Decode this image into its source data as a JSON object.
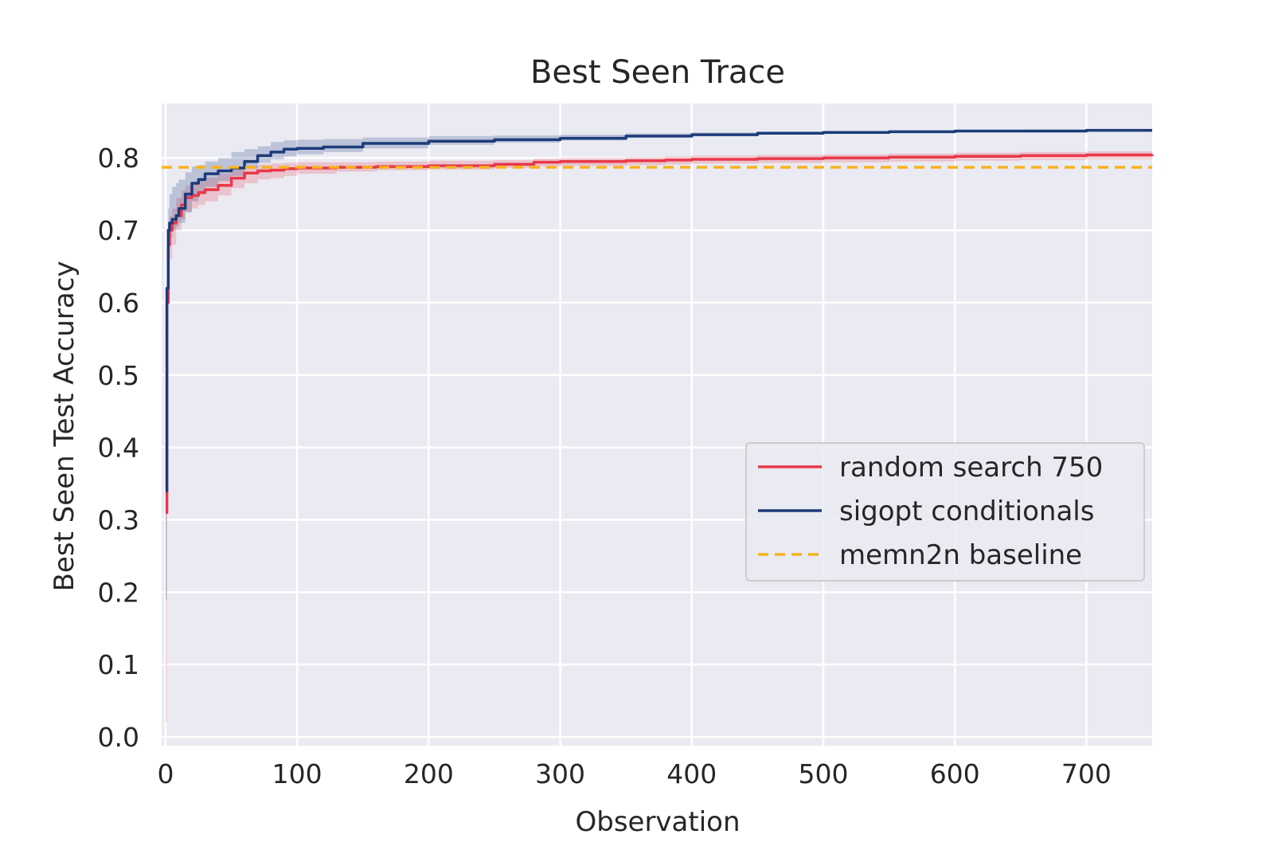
{
  "chart_data": {
    "type": "line",
    "title": "Best Seen Trace",
    "xlabel": "Observation",
    "ylabel": "Best Seen Test Accuracy",
    "xlim": [
      -3,
      750
    ],
    "ylim": [
      -0.012,
      0.875
    ],
    "x_ticks": [
      0,
      100,
      200,
      300,
      400,
      500,
      600,
      700
    ],
    "y_ticks": [
      0.0,
      0.1,
      0.2,
      0.3,
      0.4,
      0.5,
      0.6,
      0.7,
      0.8
    ],
    "grid": true,
    "legend_position": "center-right",
    "series": [
      {
        "name": "random search 750",
        "color": "#e8394a",
        "style": "solid",
        "x": [
          0,
          1,
          2,
          3,
          5,
          8,
          12,
          15,
          20,
          25,
          30,
          40,
          50,
          60,
          70,
          80,
          90,
          100,
          130,
          160,
          200,
          250,
          280,
          300,
          350,
          380,
          400,
          450,
          500,
          550,
          600,
          650,
          700,
          750
        ],
        "y": [
          0.31,
          0.6,
          0.68,
          0.7,
          0.71,
          0.72,
          0.735,
          0.745,
          0.748,
          0.752,
          0.756,
          0.762,
          0.772,
          0.779,
          0.782,
          0.783,
          0.785,
          0.786,
          0.787,
          0.788,
          0.789,
          0.791,
          0.794,
          0.795,
          0.796,
          0.797,
          0.798,
          0.799,
          0.8,
          0.801,
          0.802,
          0.803,
          0.804,
          0.805
        ],
        "lower": [
          0.02,
          0.5,
          0.62,
          0.66,
          0.68,
          0.7,
          0.715,
          0.725,
          0.73,
          0.735,
          0.74,
          0.748,
          0.758,
          0.765,
          0.77,
          0.772,
          0.775,
          0.778,
          0.781,
          0.783,
          0.784,
          0.786,
          0.788,
          0.789,
          0.79,
          0.791,
          0.792,
          0.793,
          0.794,
          0.795,
          0.796,
          0.797,
          0.798,
          0.799
        ],
        "upper": [
          0.34,
          0.65,
          0.71,
          0.72,
          0.73,
          0.745,
          0.755,
          0.762,
          0.765,
          0.77,
          0.773,
          0.778,
          0.785,
          0.789,
          0.791,
          0.792,
          0.793,
          0.794,
          0.794,
          0.795,
          0.796,
          0.797,
          0.799,
          0.8,
          0.801,
          0.802,
          0.803,
          0.804,
          0.805,
          0.806,
          0.807,
          0.808,
          0.809,
          0.81
        ]
      },
      {
        "name": "sigopt conditionals",
        "color": "#1d3c7a",
        "style": "solid",
        "x": [
          0,
          1,
          2,
          3,
          5,
          8,
          10,
          15,
          20,
          25,
          30,
          40,
          50,
          60,
          70,
          80,
          90,
          100,
          120,
          150,
          200,
          250,
          300,
          350,
          400,
          450,
          500,
          550,
          600,
          650,
          700,
          750
        ],
        "y": [
          0.34,
          0.62,
          0.7,
          0.71,
          0.715,
          0.72,
          0.73,
          0.75,
          0.765,
          0.77,
          0.778,
          0.782,
          0.786,
          0.795,
          0.803,
          0.808,
          0.812,
          0.813,
          0.815,
          0.82,
          0.823,
          0.825,
          0.827,
          0.83,
          0.832,
          0.834,
          0.835,
          0.836,
          0.837,
          0.837,
          0.838,
          0.838
        ],
        "lower": [
          0.19,
          0.56,
          0.66,
          0.69,
          0.7,
          0.705,
          0.71,
          0.725,
          0.74,
          0.75,
          0.76,
          0.768,
          0.775,
          0.785,
          0.793,
          0.798,
          0.802,
          0.805,
          0.808,
          0.813,
          0.818,
          0.821,
          0.824,
          0.828,
          0.831,
          0.833,
          0.834,
          0.835,
          0.836,
          0.836,
          0.837,
          0.837
        ],
        "upper": [
          0.36,
          0.66,
          0.73,
          0.75,
          0.76,
          0.765,
          0.77,
          0.78,
          0.788,
          0.79,
          0.795,
          0.8,
          0.808,
          0.812,
          0.816,
          0.822,
          0.824,
          0.825,
          0.826,
          0.828,
          0.83,
          0.831,
          0.832,
          0.834,
          0.835,
          0.836,
          0.837,
          0.838,
          0.838,
          0.839,
          0.839,
          0.839
        ]
      },
      {
        "name": "memn2n baseline",
        "color": "#f8b31a",
        "style": "dashed",
        "x": [
          -3,
          750
        ],
        "y": [
          0.787,
          0.787
        ]
      }
    ]
  }
}
